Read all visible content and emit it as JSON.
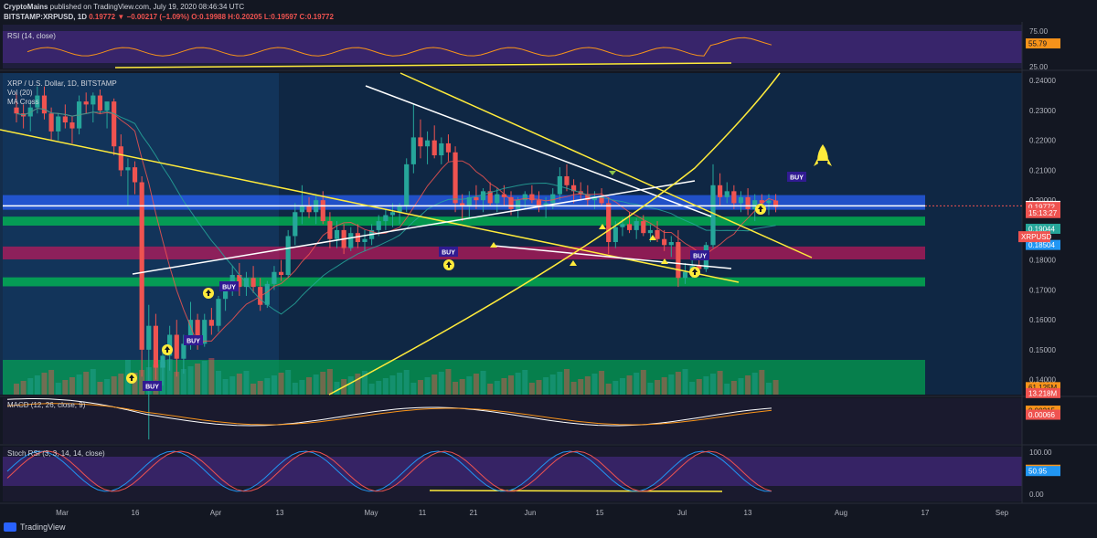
{
  "header": {
    "author": "CryptoMains",
    "published": " published on TradingView.com, July 19, 2020 08:46:34 UTC",
    "symbol": "BITSTAMP:XRPUSD, 1D",
    "last": "0.19772",
    "change": "−0.00217 (−1.09%)",
    "ohlc": "O:0.19988 H:0.20205 L:0.19597 C:0.19772"
  },
  "panes": {
    "rsi_label": "RSI (14, close)",
    "main_labels": [
      "XRP / U.S. Dollar, 1D, BITSTAMP",
      "Vol (20)",
      "MA Cross"
    ],
    "macd_label": "MACD (12, 26, close, 9)",
    "stoch_label": "Stoch RSI (3, 3, 14, 14, close)"
  },
  "price_axis": {
    "rsi_ticks": [
      "75.00",
      "25.00"
    ],
    "ticks": [
      "0.24000",
      "0.23000",
      "0.22000",
      "0.21000",
      "0.20000",
      "0.19000",
      "0.18000",
      "0.17000",
      "0.16000",
      "0.15000",
      "0.14000",
      "0.13800"
    ],
    "stoch_ticks": [
      "100.00",
      "0.00"
    ],
    "badges": [
      {
        "text": "55.79",
        "bg": "#f7931a",
        "fg": "#131722",
        "pane": "rsi",
        "value": 55.79
      },
      {
        "text": "0.19809",
        "bg": "#ffffff",
        "fg": "#131722",
        "pane": "main",
        "value": 0.19809
      },
      {
        "text": "0.19772",
        "bg": "#ef5350",
        "fg": "#ffffff",
        "pane": "main",
        "value": 0.19772
      },
      {
        "text": "15:13:27",
        "bg": "#ef5350",
        "fg": "#ffffff",
        "pane": "main",
        "value": 0.1957
      },
      {
        "text": "0.19044",
        "bg": "#26a69a",
        "fg": "#ffffff",
        "pane": "main",
        "value": 0.19044
      },
      {
        "text": "0.18504",
        "bg": "#2196f3",
        "fg": "#ffffff",
        "pane": "main",
        "value": 0.18504
      },
      {
        "text": "61.125M",
        "bg": "#f7931a",
        "fg": "#131722",
        "pane": "main",
        "value": 0.1375
      },
      {
        "text": "13.218M",
        "bg": "#ef5350",
        "fg": "#ffffff",
        "pane": "main",
        "value": 0.1355
      },
      {
        "text": "0.00215",
        "bg": "#f7931a",
        "fg": "#131722",
        "pane": "macd",
        "value": 0.00215
      },
      {
        "text": "0.00066",
        "bg": "#ef5350",
        "fg": "#ffffff",
        "pane": "macd",
        "value": 0.00066
      },
      {
        "text": "55.53",
        "bg": "#f7931a",
        "fg": "#131722",
        "pane": "stoch",
        "value": 55.53
      },
      {
        "text": "50.95",
        "bg": "#2196f3",
        "fg": "#ffffff",
        "pane": "stoch",
        "value": 50.95
      }
    ],
    "symbol_tag": "XRPUSD"
  },
  "time_axis": [
    "Mar",
    "16",
    "Apr",
    "13",
    "May",
    "11",
    "21",
    "Jun",
    "15",
    "Jul",
    "13",
    "Aug",
    "17",
    "Sep"
  ],
  "annotations": {
    "buy_label": "BUY"
  },
  "footer": {
    "brand": "TradingView"
  },
  "colors": {
    "background": "#131722",
    "up": "#26a69a",
    "down": "#ef5350",
    "trendline_yellow": "#ffeb3b",
    "trendline_white": "#ffffff",
    "zone_green": "#00c853",
    "zone_blue": "#2962ff",
    "zone_pink": "#c2185b",
    "rsi_band": "#4a2a8a"
  },
  "chart_data": {
    "type": "candlestick",
    "title": "XRP / U.S. Dollar, 1D, BITSTAMP",
    "ylim": [
      0.135,
      0.2425
    ],
    "x": [
      "2020-02-22",
      "2020-09-10"
    ],
    "series": [
      {
        "name": "XRPUSD",
        "values": [
          [
            0.231,
            0.236,
            0.226,
            0.229
          ],
          [
            0.229,
            0.232,
            0.224,
            0.228
          ],
          [
            0.228,
            0.233,
            0.223,
            0.231
          ],
          [
            0.231,
            0.238,
            0.229,
            0.235
          ],
          [
            0.235,
            0.238,
            0.227,
            0.229
          ],
          [
            0.229,
            0.231,
            0.22,
            0.223
          ],
          [
            0.223,
            0.229,
            0.22,
            0.228
          ],
          [
            0.228,
            0.232,
            0.224,
            0.226
          ],
          [
            0.226,
            0.228,
            0.219,
            0.224
          ],
          [
            0.224,
            0.235,
            0.222,
            0.233
          ],
          [
            0.233,
            0.236,
            0.229,
            0.232
          ],
          [
            0.232,
            0.236,
            0.226,
            0.235
          ],
          [
            0.235,
            0.237,
            0.229,
            0.23
          ],
          [
            0.23,
            0.232,
            0.224,
            0.233
          ],
          [
            0.233,
            0.234,
            0.215,
            0.218
          ],
          [
            0.218,
            0.222,
            0.208,
            0.21
          ],
          [
            0.21,
            0.214,
            0.198,
            0.211
          ],
          [
            0.211,
            0.213,
            0.202,
            0.206
          ],
          [
            0.206,
            0.208,
            0.141,
            0.15
          ],
          [
            0.15,
            0.165,
            0.12,
            0.158
          ],
          [
            0.158,
            0.162,
            0.14,
            0.144
          ],
          [
            0.144,
            0.151,
            0.138,
            0.148
          ],
          [
            0.148,
            0.158,
            0.143,
            0.155
          ],
          [
            0.155,
            0.16,
            0.141,
            0.147
          ],
          [
            0.147,
            0.155,
            0.142,
            0.152
          ],
          [
            0.152,
            0.166,
            0.15,
            0.16
          ],
          [
            0.16,
            0.162,
            0.15,
            0.152
          ],
          [
            0.152,
            0.162,
            0.151,
            0.16
          ],
          [
            0.16,
            0.164,
            0.155,
            0.158
          ],
          [
            0.158,
            0.168,
            0.156,
            0.167
          ],
          [
            0.167,
            0.172,
            0.163,
            0.17
          ],
          [
            0.17,
            0.178,
            0.168,
            0.175
          ],
          [
            0.175,
            0.179,
            0.168,
            0.171
          ],
          [
            0.171,
            0.176,
            0.168,
            0.174
          ],
          [
            0.174,
            0.178,
            0.169,
            0.171
          ],
          [
            0.171,
            0.174,
            0.163,
            0.165
          ],
          [
            0.165,
            0.173,
            0.164,
            0.172
          ],
          [
            0.172,
            0.178,
            0.17,
            0.176
          ],
          [
            0.176,
            0.18,
            0.173,
            0.175
          ],
          [
            0.175,
            0.19,
            0.174,
            0.188
          ],
          [
            0.188,
            0.199,
            0.185,
            0.196
          ],
          [
            0.196,
            0.205,
            0.192,
            0.198
          ],
          [
            0.198,
            0.201,
            0.194,
            0.196
          ],
          [
            0.196,
            0.202,
            0.192,
            0.2
          ],
          [
            0.2,
            0.203,
            0.192,
            0.193
          ],
          [
            0.193,
            0.196,
            0.184,
            0.187
          ],
          [
            0.187,
            0.193,
            0.184,
            0.19
          ],
          [
            0.19,
            0.192,
            0.182,
            0.184
          ],
          [
            0.184,
            0.191,
            0.183,
            0.189
          ],
          [
            0.189,
            0.192,
            0.184,
            0.186
          ],
          [
            0.186,
            0.19,
            0.183,
            0.187
          ],
          [
            0.187,
            0.192,
            0.185,
            0.19
          ],
          [
            0.19,
            0.195,
            0.188,
            0.193
          ],
          [
            0.193,
            0.197,
            0.19,
            0.195
          ],
          [
            0.195,
            0.199,
            0.191,
            0.196
          ],
          [
            0.196,
            0.199,
            0.192,
            0.198
          ],
          [
            0.198,
            0.214,
            0.196,
            0.212
          ],
          [
            0.212,
            0.232,
            0.209,
            0.221
          ],
          [
            0.221,
            0.227,
            0.214,
            0.218
          ],
          [
            0.218,
            0.223,
            0.212,
            0.22
          ],
          [
            0.22,
            0.225,
            0.214,
            0.215
          ],
          [
            0.215,
            0.221,
            0.212,
            0.219
          ],
          [
            0.219,
            0.222,
            0.213,
            0.216
          ],
          [
            0.216,
            0.218,
            0.196,
            0.199
          ],
          [
            0.199,
            0.202,
            0.193,
            0.198
          ],
          [
            0.198,
            0.203,
            0.194,
            0.201
          ],
          [
            0.201,
            0.205,
            0.197,
            0.2
          ],
          [
            0.2,
            0.204,
            0.196,
            0.203
          ],
          [
            0.203,
            0.206,
            0.198,
            0.199
          ],
          [
            0.199,
            0.204,
            0.196,
            0.202
          ],
          [
            0.202,
            0.205,
            0.198,
            0.201
          ],
          [
            0.201,
            0.203,
            0.195,
            0.197
          ],
          [
            0.197,
            0.201,
            0.194,
            0.2
          ],
          [
            0.2,
            0.203,
            0.197,
            0.202
          ],
          [
            0.202,
            0.205,
            0.199,
            0.2
          ],
          [
            0.2,
            0.203,
            0.196,
            0.198
          ],
          [
            0.198,
            0.201,
            0.194,
            0.199
          ],
          [
            0.199,
            0.204,
            0.197,
            0.202
          ],
          [
            0.202,
            0.211,
            0.2,
            0.208
          ],
          [
            0.208,
            0.212,
            0.203,
            0.205
          ],
          [
            0.205,
            0.207,
            0.199,
            0.203
          ],
          [
            0.203,
            0.206,
            0.2,
            0.202
          ],
          [
            0.202,
            0.205,
            0.198,
            0.2
          ],
          [
            0.2,
            0.203,
            0.197,
            0.201
          ],
          [
            0.201,
            0.204,
            0.198,
            0.199
          ],
          [
            0.199,
            0.201,
            0.182,
            0.186
          ],
          [
            0.186,
            0.193,
            0.184,
            0.191
          ],
          [
            0.191,
            0.194,
            0.188,
            0.192
          ],
          [
            0.192,
            0.196,
            0.189,
            0.19
          ],
          [
            0.19,
            0.194,
            0.187,
            0.193
          ],
          [
            0.193,
            0.195,
            0.188,
            0.189
          ],
          [
            0.189,
            0.192,
            0.186,
            0.19
          ],
          [
            0.19,
            0.193,
            0.186,
            0.187
          ],
          [
            0.187,
            0.19,
            0.183,
            0.185
          ],
          [
            0.185,
            0.188,
            0.181,
            0.186
          ],
          [
            0.186,
            0.19,
            0.171,
            0.174
          ],
          [
            0.174,
            0.179,
            0.172,
            0.176
          ],
          [
            0.176,
            0.18,
            0.174,
            0.178
          ],
          [
            0.178,
            0.181,
            0.175,
            0.177
          ],
          [
            0.177,
            0.186,
            0.176,
            0.185
          ],
          [
            0.185,
            0.212,
            0.184,
            0.205
          ],
          [
            0.205,
            0.209,
            0.198,
            0.201
          ],
          [
            0.201,
            0.206,
            0.199,
            0.203
          ],
          [
            0.203,
            0.205,
            0.197,
            0.199
          ],
          [
            0.199,
            0.203,
            0.196,
            0.201
          ],
          [
            0.201,
            0.204,
            0.195,
            0.197
          ],
          [
            0.197,
            0.202,
            0.193,
            0.2
          ],
          [
            0.2,
            0.202,
            0.196,
            0.199
          ],
          [
            0.199,
            0.202,
            0.195,
            0.1999
          ],
          [
            0.19988,
            0.20205,
            0.19597,
            0.19772
          ]
        ]
      }
    ],
    "zones": [
      {
        "name": "blue",
        "from": 0.1968,
        "to": 0.2017,
        "color": "#2962ff"
      },
      {
        "name": "green-upper",
        "from": 0.1915,
        "to": 0.1945,
        "color": "#00c853"
      },
      {
        "name": "pink",
        "from": 0.1802,
        "to": 0.1845,
        "color": "#c2185b"
      },
      {
        "name": "green-lower",
        "from": 0.1712,
        "to": 0.1742,
        "color": "#00c853"
      }
    ]
  }
}
